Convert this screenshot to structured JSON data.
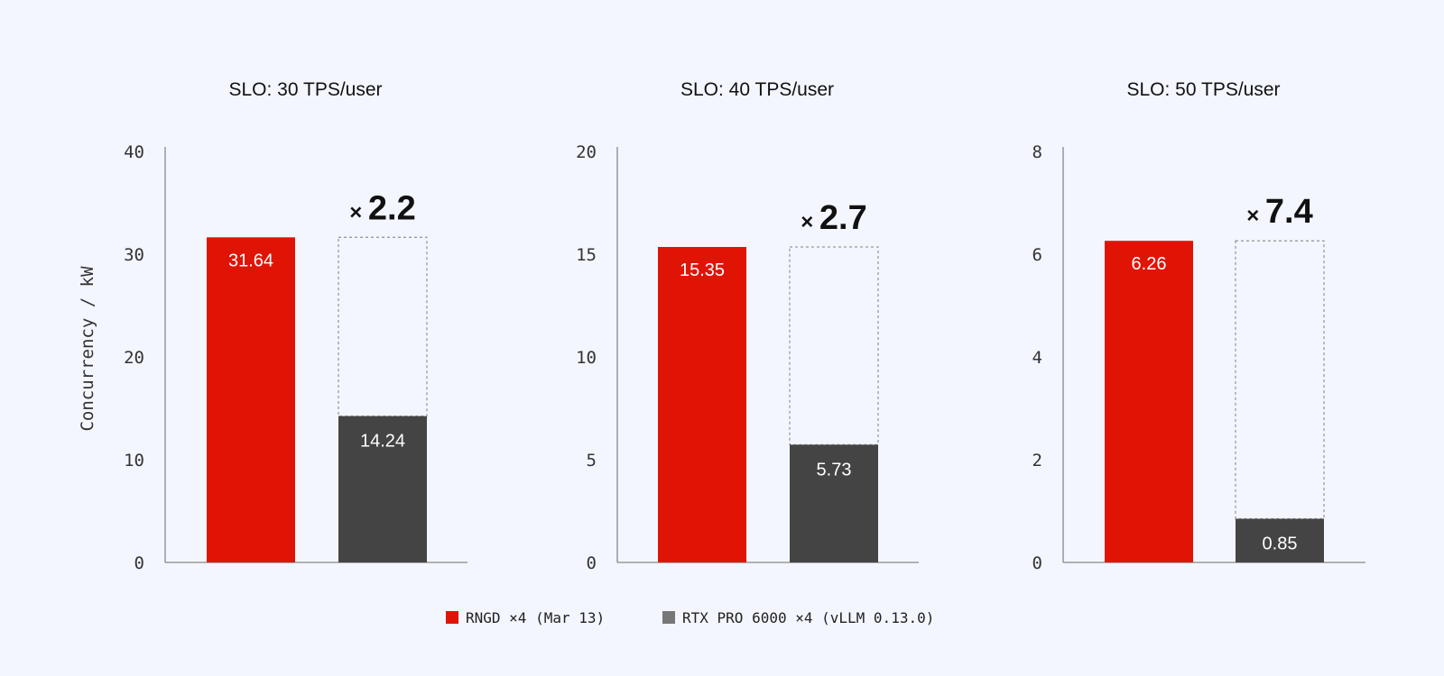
{
  "y_axis_label": "Concurrency / kW",
  "legend": [
    {
      "label": "RNGD ×4 (Mar 13)",
      "color": "#e01405"
    },
    {
      "label": "RTX PRO 6000 ×4 (vLLM 0.13.0)",
      "color": "#777777"
    }
  ],
  "colors": {
    "rngd": "#e01405",
    "rtx": "#444444",
    "axis": "#888888",
    "ghost": "#999999"
  },
  "chart_data": [
    {
      "type": "bar",
      "title": "SLO: 30 TPS/user",
      "categories": [
        "RNGD ×4 (Mar 13)",
        "RTX PRO 6000 ×4 (vLLM 0.13.0)"
      ],
      "values": [
        31.64,
        14.24
      ],
      "value_labels": [
        "31.64",
        "14.24"
      ],
      "ratio_prefix": "×",
      "ratio": "2.2",
      "ylim": [
        0,
        40
      ],
      "yticks": [
        0,
        10,
        20,
        30,
        40
      ],
      "ylabel": "Concurrency / kW"
    },
    {
      "type": "bar",
      "title": "SLO: 40 TPS/user",
      "categories": [
        "RNGD ×4 (Mar 13)",
        "RTX PRO 6000 ×4 (vLLM 0.13.0)"
      ],
      "values": [
        15.35,
        5.73
      ],
      "value_labels": [
        "15.35",
        "5.73"
      ],
      "ratio_prefix": "×",
      "ratio": "2.7",
      "ylim": [
        0,
        20
      ],
      "yticks": [
        0,
        5,
        10,
        15,
        20
      ],
      "ylabel": ""
    },
    {
      "type": "bar",
      "title": "SLO: 50 TPS/user",
      "categories": [
        "RNGD ×4 (Mar 13)",
        "RTX PRO 6000 ×4 (vLLM 0.13.0)"
      ],
      "values": [
        6.26,
        0.85
      ],
      "value_labels": [
        "6.26",
        "0.85"
      ],
      "ratio_prefix": "×",
      "ratio": "7.4",
      "ylim": [
        0,
        8
      ],
      "yticks": [
        0,
        2,
        4,
        6,
        8
      ],
      "ylabel": ""
    }
  ]
}
